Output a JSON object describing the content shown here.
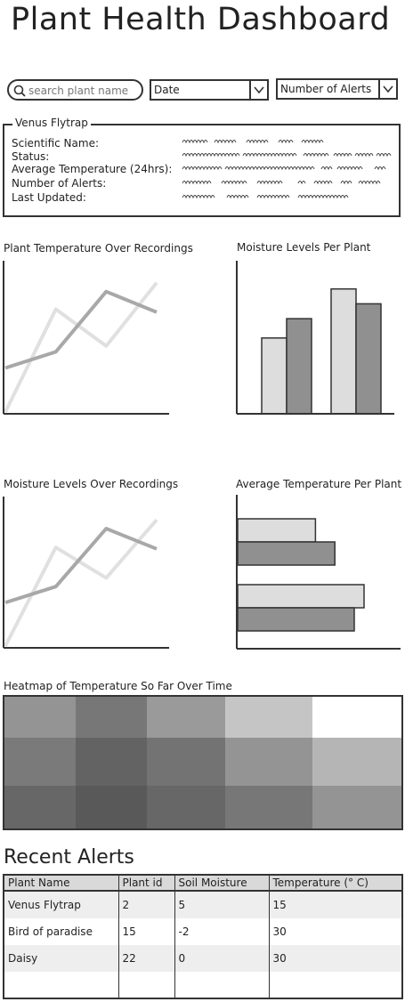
{
  "header": {
    "title": "Plant Health Dashboard"
  },
  "filters": {
    "search_placeholder": "search plant name",
    "date_value": "Date",
    "alerts_value": "Number of Alerts"
  },
  "plant_info": {
    "plant_name": "Venus Flytrap",
    "labels": [
      "Scientific Name:",
      "Status:",
      "Average Temperature (24hrs):",
      "Number of Alerts:",
      "Last Updated:"
    ]
  },
  "charts": {
    "temp_recordings": {
      "title": "Plant Temperature Over Recordings"
    },
    "moisture_per_plant": {
      "title": "Moisture Levels Per Plant"
    },
    "moisture_recordings": {
      "title": "Moisture Levels Over Recordings"
    },
    "avg_temp_per_plant": {
      "title": "Average Temperature Per Plant"
    },
    "heatmap": {
      "title": "Heatmap of Temperature So Far Over Time"
    }
  },
  "chart_data": [
    {
      "type": "line",
      "title": "Plant Temperature Over Recordings",
      "x": [
        0,
        1,
        2,
        3
      ],
      "series": [
        {
          "values": [
            0.0,
            0.7,
            0.45,
            0.88
          ],
          "color": "#e0e0e0"
        },
        {
          "values": [
            0.3,
            0.41,
            0.82,
            0.68
          ],
          "color": "#a8a8a8"
        }
      ]
    },
    {
      "type": "bar",
      "title": "Moisture Levels Per Plant",
      "categories": [
        "",
        ""
      ],
      "series": [
        {
          "values": [
            0.51,
            0.84
          ],
          "color": "#dddddd"
        },
        {
          "values": [
            0.64,
            0.74
          ],
          "color": "#909090"
        }
      ]
    },
    {
      "type": "line",
      "title": "Moisture Levels Over Recordings",
      "x": [
        0,
        1,
        2,
        3
      ],
      "series": [
        {
          "values": [
            0.0,
            0.68,
            0.47,
            0.87
          ],
          "color": "#e0e0e0"
        },
        {
          "values": [
            0.3,
            0.41,
            0.81,
            0.67
          ],
          "color": "#a8a8a8"
        }
      ]
    },
    {
      "type": "bar",
      "orientation": "horizontal",
      "title": "Average Temperature Per Plant",
      "categories": [
        "",
        ""
      ],
      "series": [
        {
          "values": [
            0.48,
            0.78
          ],
          "color": "#dddddd"
        },
        {
          "values": [
            0.6,
            0.72
          ],
          "color": "#909090"
        }
      ]
    },
    {
      "type": "heatmap",
      "title": "Heatmap of Temperature So Far Over Time",
      "rows": 3,
      "cols": 5,
      "values": [
        [
          0.45,
          0.3,
          0.48,
          0.7,
          1.0
        ],
        [
          0.32,
          0.2,
          0.28,
          0.45,
          0.62
        ],
        [
          0.22,
          0.15,
          0.22,
          0.3,
          0.45
        ]
      ]
    }
  ],
  "alerts": {
    "title": "Recent Alerts",
    "columns": [
      "Plant Name",
      "Plant id",
      "Soil Moisture",
      "Temperature (° C)"
    ],
    "rows": [
      [
        "Venus Flytrap",
        "2",
        "5",
        "15"
      ],
      [
        "Bird of paradise",
        "15",
        "-2",
        "30"
      ],
      [
        "Daisy",
        "22",
        "0",
        "30"
      ],
      [
        "",
        "",
        "",
        ""
      ]
    ]
  }
}
